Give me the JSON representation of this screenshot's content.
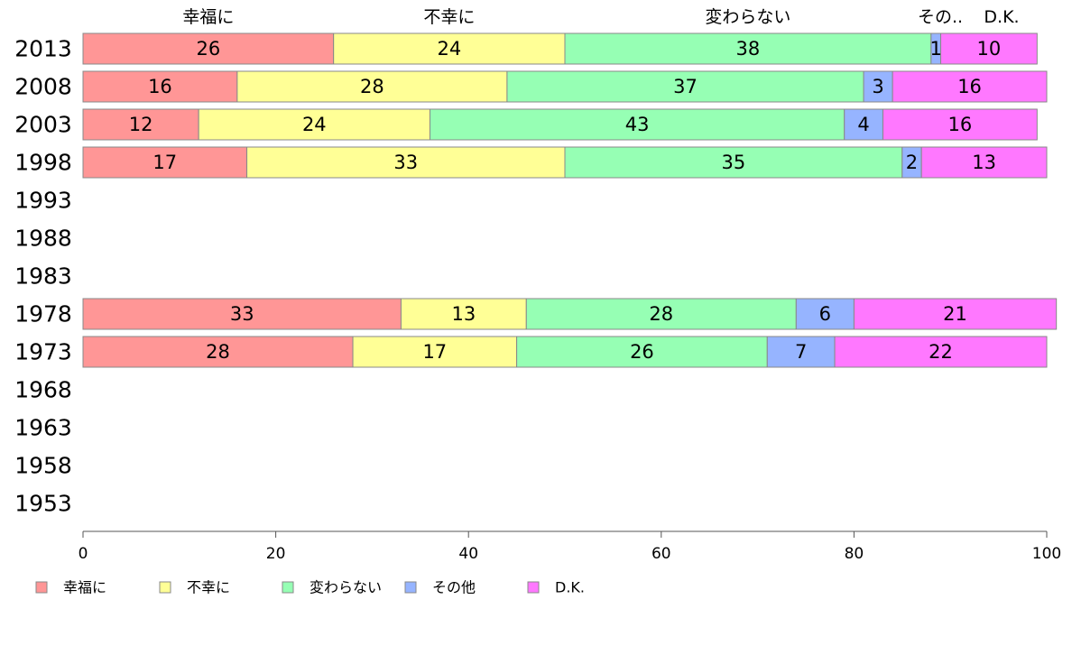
{
  "chart_data": {
    "type": "bar",
    "orientation": "horizontal",
    "stacked": true,
    "categories": [
      "2013",
      "2008",
      "2003",
      "1998",
      "1993",
      "1988",
      "1983",
      "1978",
      "1973",
      "1968",
      "1963",
      "1958",
      "1953"
    ],
    "series": [
      {
        "name": "幸福に",
        "color": "#ff9696",
        "values": [
          26,
          16,
          12,
          17,
          null,
          null,
          null,
          33,
          28,
          null,
          null,
          null,
          null
        ]
      },
      {
        "name": "不幸に",
        "color": "#ffff96",
        "values": [
          24,
          28,
          24,
          33,
          null,
          null,
          null,
          13,
          17,
          null,
          null,
          null,
          null
        ]
      },
      {
        "name": "変わらない",
        "color": "#96ffb4",
        "values": [
          38,
          37,
          43,
          35,
          null,
          null,
          null,
          28,
          26,
          null,
          null,
          null,
          null
        ]
      },
      {
        "name": "その他",
        "color": "#96b4ff",
        "values": [
          1,
          3,
          4,
          2,
          null,
          null,
          null,
          6,
          7,
          null,
          null,
          null,
          null
        ]
      },
      {
        "name": "D.K.",
        "color": "#ff78ff",
        "values": [
          10,
          16,
          16,
          13,
          null,
          null,
          null,
          21,
          22,
          null,
          null,
          null,
          null
        ]
      }
    ],
    "top_labels": [
      "幸福に",
      "不幸に",
      "変わらない",
      "その..",
      "D.K."
    ],
    "xlim": [
      0,
      100
    ],
    "xticks": [
      0,
      20,
      40,
      60,
      80,
      100
    ],
    "grid": false,
    "legend_position": "bottom"
  }
}
